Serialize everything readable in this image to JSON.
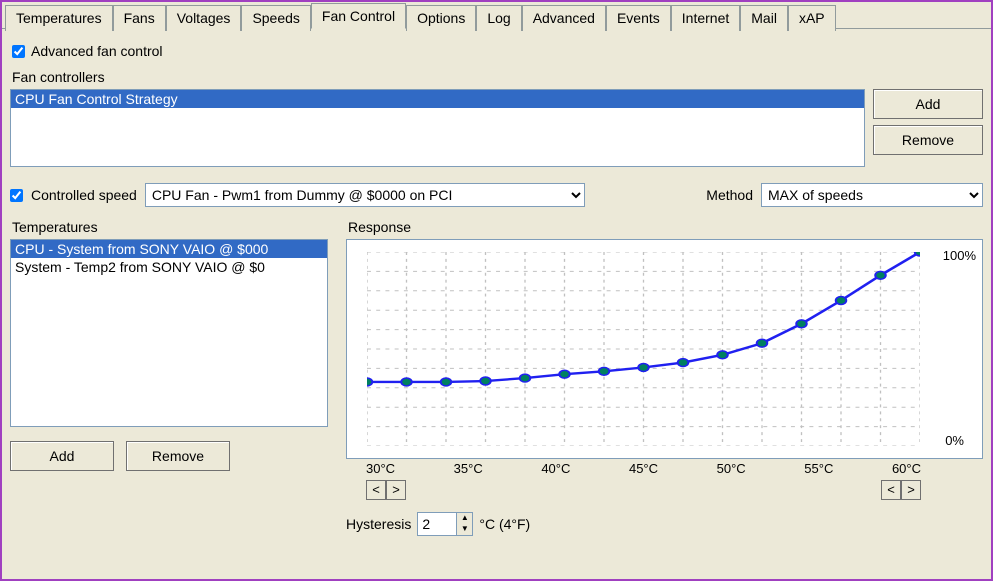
{
  "tabs": [
    "Temperatures",
    "Fans",
    "Voltages",
    "Speeds",
    "Fan Control",
    "Options",
    "Log",
    "Advanced",
    "Events",
    "Internet",
    "Mail",
    "xAP"
  ],
  "active_tab": 4,
  "advanced_checkbox_label": "Advanced fan control",
  "advanced_checked": true,
  "controllers_label": "Fan controllers",
  "controllers_items": [
    "CPU Fan Control Strategy"
  ],
  "add_label": "Add",
  "remove_label": "Remove",
  "controlled_speed_checked": true,
  "controlled_speed_label": "Controlled speed",
  "speed_combo_value": "CPU Fan - Pwm1 from Dummy @ $0000 on PCI",
  "method_label": "Method",
  "method_combo_value": "MAX of speeds",
  "temps_label": "Temperatures",
  "temps_items": [
    "CPU - System from SONY VAIO @ $000",
    "System - Temp2 from SONY VAIO @ $0"
  ],
  "response_label": "Response",
  "chart": {
    "type": "line",
    "x_ticks": [
      "30°C",
      "35°C",
      "40°C",
      "45°C",
      "50°C",
      "55°C",
      "60°C"
    ],
    "y_top_label": "100%",
    "y_bottom_label": "0%",
    "points": [
      {
        "x": 0,
        "y": 33
      },
      {
        "x": 1,
        "y": 33
      },
      {
        "x": 2,
        "y": 33
      },
      {
        "x": 3,
        "y": 33.5
      },
      {
        "x": 4,
        "y": 35
      },
      {
        "x": 5,
        "y": 37
      },
      {
        "x": 6,
        "y": 38.5
      },
      {
        "x": 7,
        "y": 40.5
      },
      {
        "x": 8,
        "y": 43
      },
      {
        "x": 9,
        "y": 47
      },
      {
        "x": 10,
        "y": 53
      },
      {
        "x": 11,
        "y": 63
      },
      {
        "x": 12,
        "y": 75
      },
      {
        "x": 13,
        "y": 88
      },
      {
        "x": 14,
        "y": 100
      }
    ],
    "line_color": "#2020f0",
    "marker_fill": "#008060",
    "marker_size": 4,
    "line_width": 2.4,
    "grid_color": "#c0c0c0",
    "bg_color": "#ffffff"
  },
  "nav_left": "<",
  "nav_right": ">",
  "hysteresis_label": "Hysteresis",
  "hysteresis_value": "2",
  "hysteresis_unit": "°C (4°F)",
  "colors": {
    "selection_bg": "#316ac5",
    "selection_fg": "#ffffff",
    "panel_bg": "#ece9d8",
    "border": "#7f9db9"
  }
}
